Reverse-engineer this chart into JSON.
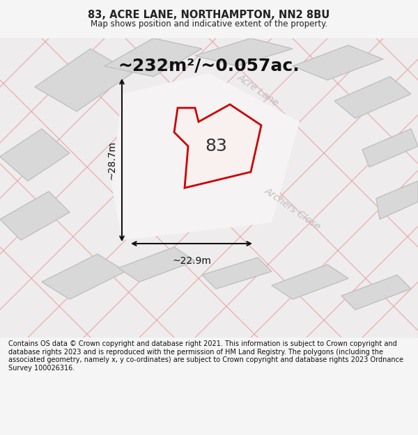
{
  "title_line1": "83, ACRE LANE, NORTHAMPTON, NN2 8BU",
  "title_line2": "Map shows position and indicative extent of the property.",
  "area_text": "~232m²/~0.057ac.",
  "label_83": "83",
  "dim_width": "~22.9m",
  "dim_height": "~28.7m",
  "road_label1": "Acre Lane",
  "road_label2": "Archers Close",
  "footer_text": "Contains OS data © Crown copyright and database right 2021. This information is subject to Crown copyright and database rights 2023 and is reproduced with the permission of HM Land Registry. The polygons (including the associated geometry, namely x, y co-ordinates) are subject to Crown copyright and database rights 2023 Ordnance Survey 100026316.",
  "bg_color": "#f5f5f5",
  "map_bg": "#f0eeee",
  "plot_outline_color": "#cc0000",
  "building_fill": "#d8d8d8",
  "building_stroke": "#c8c8c8",
  "road_line_color": "#e8a0a0",
  "dim_line_color": "#111111",
  "text_color": "#222222",
  "road_text_color": "#bbbbbb",
  "footer_bg": "#ffffff"
}
